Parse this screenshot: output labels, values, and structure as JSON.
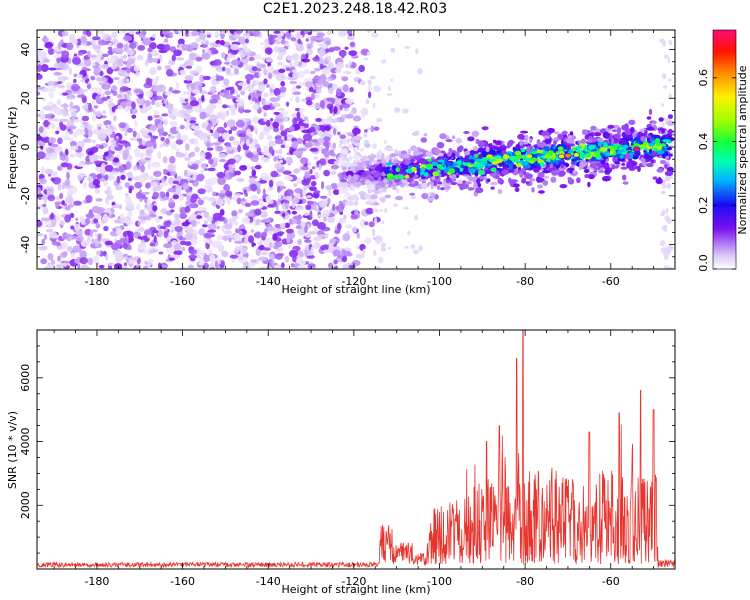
{
  "title": "C2E1.2023.248.18.42.R03",
  "chart_data": [
    {
      "type": "heatmap",
      "xlabel": "Height of straight line (km)",
      "ylabel": "Frequency (Hz)",
      "xlim": [
        -194,
        -45
      ],
      "ylim": [
        -50,
        48
      ],
      "xticks": [
        -180,
        -160,
        -140,
        -120,
        -100,
        -80,
        -60
      ],
      "yticks": [
        -40,
        -20,
        0,
        20,
        40
      ],
      "colorbar": {
        "label": "Normalized spectral amplitude",
        "range": [
          0.0,
          0.75
        ],
        "ticks": [
          "0.0",
          "0.2",
          "0.4",
          "0.6"
        ],
        "tick_values": [
          0.0,
          0.2,
          0.4,
          0.6
        ]
      },
      "noise_region_km": [
        -194,
        -113
      ],
      "signal_band": {
        "start_km": -123,
        "end_km": -46,
        "freq_at_start_hz": -12,
        "freq_at_end_hz": 1,
        "peak_amplitude": 0.75,
        "peak_km": -70
      }
    },
    {
      "type": "line",
      "color": "#e8342e",
      "xlabel": "Height of straight line (km)",
      "ylabel": "SNR (10 * v/v)",
      "xlim": [
        -194,
        -45
      ],
      "ylim": [
        0,
        7500
      ],
      "xticks": [
        -180,
        -160,
        -140,
        -120,
        -100,
        -80,
        -60
      ],
      "yticks": [
        2000,
        4000,
        6000
      ],
      "peaks": [
        {
          "x": -80.5,
          "y": 7500
        },
        {
          "x": -82,
          "y": 6600
        },
        {
          "x": -86,
          "y": 4500
        },
        {
          "x": -89,
          "y": 4000
        },
        {
          "x": -65,
          "y": 4300
        },
        {
          "x": -58,
          "y": 4900
        },
        {
          "x": -53,
          "y": 5600
        },
        {
          "x": -50,
          "y": 5000
        }
      ]
    }
  ]
}
